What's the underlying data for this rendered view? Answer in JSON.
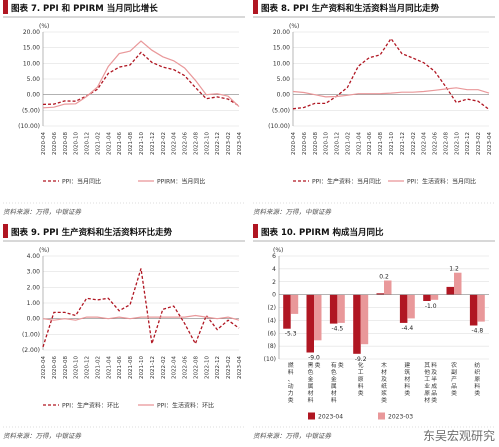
{
  "colors": {
    "dark_red": "#b01622",
    "light_red": "#e9989a",
    "title_bar": "#b01622",
    "grid": "#d9d9d9",
    "axis_text": "#333333",
    "source_text": "#555555"
  },
  "watermark": "东吴宏观研究",
  "panels": [
    {
      "title": "图表 7.  PPI 和 PPIRM 当月同比增长",
      "source": "资料来源：万得，中银证券",
      "unit": "(%)"
    },
    {
      "title": "图表 8. PPI 生产资料和生活资料当月同比走势",
      "source": "资料来源：万得，中银证券",
      "unit": "(%)"
    },
    {
      "title": "图表 9.   PPI 生产资料和生活资料环比走势",
      "source": "资料来源：万得，中银证券",
      "unit": "(%)"
    },
    {
      "title": "图表 10. PPIRM 构成当月同比",
      "source": "资料来源：万得，中银证券",
      "unit": "(%)"
    }
  ],
  "chart_data": [
    {
      "type": "line",
      "x": [
        "2020-04",
        "2020-06",
        "2020-08",
        "2020-10",
        "2020-12",
        "2021-02",
        "2021-04",
        "2021-06",
        "2021-08",
        "2021-10",
        "2021-12",
        "2022-02",
        "2022-04",
        "2022-06",
        "2022-08",
        "2022-10",
        "2022-12",
        "2023-02",
        "2023-04"
      ],
      "ylim": [
        -10,
        20
      ],
      "yticks": [
        "20.00",
        "15.00",
        "10.00",
        "5.00",
        "0.00",
        "(5.00)",
        "(10.00)"
      ],
      "series": [
        {
          "name": "PPI：当月同比",
          "style": "dashed",
          "values": [
            -3.1,
            -3.0,
            -2.0,
            -2.1,
            -0.4,
            1.7,
            6.8,
            8.8,
            9.5,
            13.5,
            10.3,
            8.8,
            8.0,
            6.1,
            2.3,
            -1.3,
            -0.7,
            -1.4,
            -3.6
          ]
        },
        {
          "name": "PPIRM：当月同比",
          "style": "solid",
          "values": [
            -4.2,
            -4.0,
            -3.0,
            -2.9,
            -0.6,
            2.4,
            9.0,
            13.1,
            13.9,
            17.1,
            14.2,
            12.1,
            10.8,
            8.5,
            4.6,
            0.0,
            0.3,
            -0.5,
            -3.8
          ]
        }
      ]
    },
    {
      "type": "line",
      "x": [
        "2020-04",
        "2020-06",
        "2020-08",
        "2020-10",
        "2020-12",
        "2021-02",
        "2021-04",
        "2021-06",
        "2021-08",
        "2021-10",
        "2021-12",
        "2022-02",
        "2022-04",
        "2022-06",
        "2022-08",
        "2022-10",
        "2022-12",
        "2023-02",
        "2023-04"
      ],
      "ylim": [
        -10,
        20
      ],
      "yticks": [
        "20.00",
        "15.00",
        "10.00",
        "5.00",
        "0.00",
        "(5.00)",
        "(10.00)"
      ],
      "series": [
        {
          "name": "PPI：生产资料：当月同比",
          "style": "dashed",
          "values": [
            -4.5,
            -4.1,
            -2.8,
            -2.8,
            -0.5,
            2.3,
            9.1,
            11.8,
            12.7,
            17.9,
            13.1,
            11.7,
            10.2,
            7.5,
            2.7,
            -2.5,
            -1.4,
            -2.1,
            -4.7
          ]
        },
        {
          "name": "PPI：生活资料：当月同比",
          "style": "solid",
          "values": [
            1.0,
            0.7,
            0.0,
            -0.7,
            -0.6,
            -0.2,
            0.3,
            0.3,
            0.3,
            0.5,
            0.8,
            0.8,
            1.0,
            1.4,
            1.8,
            2.2,
            1.6,
            1.6,
            0.5
          ]
        }
      ]
    },
    {
      "type": "line",
      "x": [
        "2020-04",
        "2020-06",
        "2020-08",
        "2020-10",
        "2020-12",
        "2021-02",
        "2021-04",
        "2021-06",
        "2021-08",
        "2021-10",
        "2021-12",
        "2022-02",
        "2022-04",
        "2022-06",
        "2022-08",
        "2022-10",
        "2022-12",
        "2023-02",
        "2023-04"
      ],
      "ylim": [
        -2,
        4
      ],
      "yticks": [
        "4.00",
        "3.00",
        "2.00",
        "1.00",
        "0.00",
        "(1.00)",
        "(2.00)"
      ],
      "series": [
        {
          "name": "PPI：生产资料：环比",
          "style": "dashed",
          "values": [
            -1.8,
            0.4,
            0.4,
            0.2,
            1.3,
            1.2,
            1.3,
            0.5,
            0.9,
            3.2,
            -1.6,
            0.6,
            0.8,
            -0.3,
            -1.6,
            0.2,
            -0.7,
            -0.1,
            -0.6
          ]
        },
        {
          "name": "PPI：生活资料：环比",
          "style": "solid",
          "values": [
            0.0,
            -0.1,
            0.0,
            -0.1,
            0.1,
            0.1,
            0.0,
            0.1,
            0.0,
            0.1,
            0.1,
            0.1,
            0.1,
            0.1,
            0.2,
            0.1,
            0.0,
            0.1,
            -0.1
          ]
        }
      ]
    },
    {
      "type": "bar",
      "categories": [
        "燃料、动力类",
        "黑色金属材料类",
        "有色金属材料类",
        "化工原料类",
        "木材及纸浆类",
        "建筑材料类",
        "其他工业原材料及半成品类",
        "农副产品类",
        "纺织原料类"
      ],
      "ylim": [
        -10,
        6
      ],
      "yticks": [
        "6",
        "4",
        "2",
        "0",
        "(2)",
        "(4)",
        "(6)",
        "(8)",
        "(10)"
      ],
      "series": [
        {
          "name": "2023-04",
          "values": [
            -5.3,
            -9.0,
            -4.5,
            -9.2,
            0.2,
            -4.4,
            -1.0,
            1.2,
            -4.8
          ]
        },
        {
          "name": "2023-03",
          "values": [
            -3.0,
            -7.1,
            -4.4,
            -7.7,
            2.2,
            -3.7,
            -0.8,
            3.4,
            -4.2
          ]
        }
      ],
      "data_labels": [
        "-5.3",
        "-9.0",
        "-4.5",
        "-9.2",
        "0.2",
        "-4.4",
        "-1.0",
        "1.2",
        "-4.8"
      ]
    }
  ]
}
